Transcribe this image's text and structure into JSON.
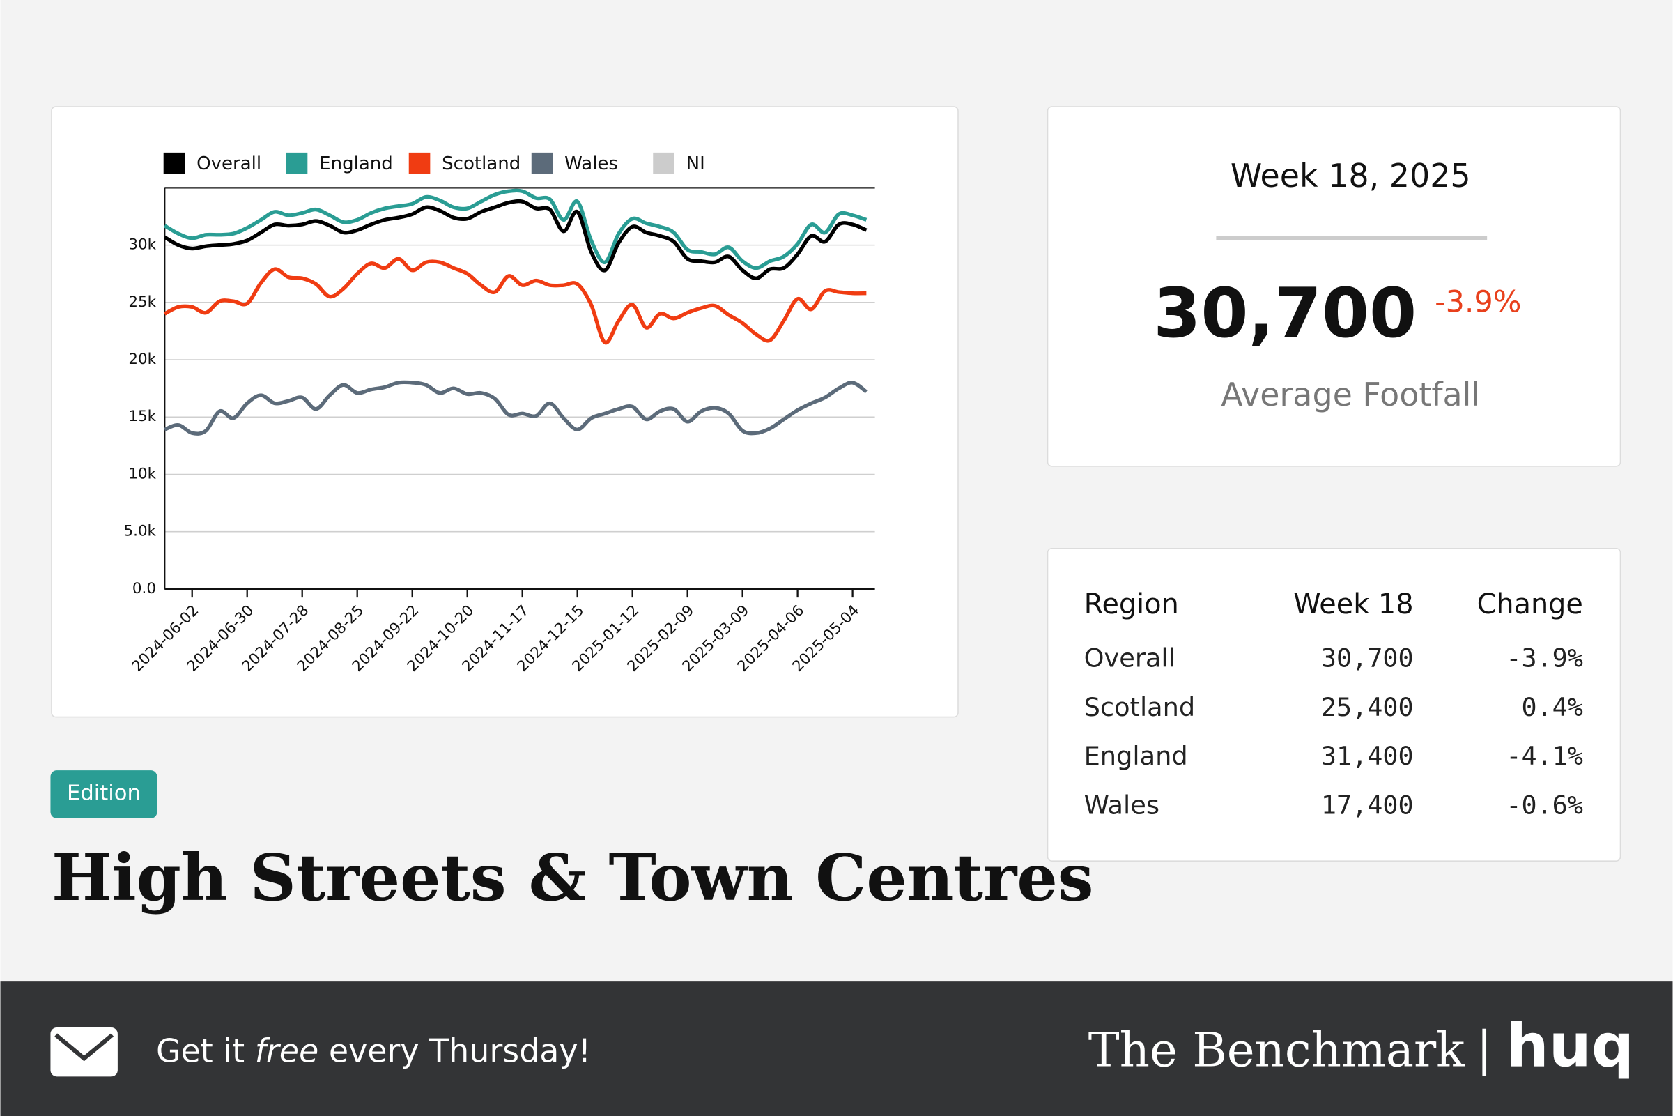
{
  "chart_data": {
    "type": "line",
    "x": [
      "2024-05-19",
      "2024-05-26",
      "2024-06-02",
      "2024-06-09",
      "2024-06-16",
      "2024-06-23",
      "2024-06-30",
      "2024-07-07",
      "2024-07-14",
      "2024-07-21",
      "2024-07-28",
      "2024-08-04",
      "2024-08-11",
      "2024-08-18",
      "2024-08-25",
      "2024-09-01",
      "2024-09-08",
      "2024-09-15",
      "2024-09-22",
      "2024-09-29",
      "2024-10-06",
      "2024-10-13",
      "2024-10-20",
      "2024-10-27",
      "2024-11-03",
      "2024-11-10",
      "2024-11-17",
      "2024-11-24",
      "2024-12-01",
      "2024-12-08",
      "2024-12-15",
      "2024-12-22",
      "2024-12-29",
      "2025-01-05",
      "2025-01-12",
      "2025-01-19",
      "2025-01-26",
      "2025-02-02",
      "2025-02-09",
      "2025-02-16",
      "2025-02-23",
      "2025-03-02",
      "2025-03-09",
      "2025-03-16",
      "2025-03-23",
      "2025-03-30",
      "2025-04-06",
      "2025-04-13",
      "2025-04-20",
      "2025-04-27",
      "2025-05-04",
      "2025-05-11"
    ],
    "series": [
      {
        "name": "Overall",
        "color": "#000000",
        "values": [
          30700,
          30000,
          29700,
          29900,
          30000,
          30100,
          30400,
          31100,
          31800,
          31700,
          31800,
          32100,
          31700,
          31100,
          31300,
          31800,
          32200,
          32400,
          32700,
          33300,
          33000,
          32400,
          32300,
          32900,
          33300,
          33700,
          33800,
          33200,
          33100,
          31200,
          32900,
          29400,
          27800,
          30200,
          31600,
          31100,
          30800,
          30300,
          28800,
          28600,
          28500,
          29000,
          27800,
          27100,
          27900,
          28000,
          29200,
          30800,
          30300,
          31800,
          31800,
          31300
        ]
      },
      {
        "name": "England",
        "color": "#2a9d94",
        "values": [
          31700,
          31000,
          30600,
          30900,
          30900,
          31000,
          31500,
          32200,
          32900,
          32600,
          32800,
          33100,
          32600,
          32000,
          32200,
          32800,
          33200,
          33400,
          33600,
          34200,
          33900,
          33300,
          33200,
          33800,
          34400,
          34700,
          34700,
          34100,
          34000,
          32200,
          33800,
          30400,
          28500,
          31000,
          32300,
          31900,
          31600,
          31100,
          29600,
          29400,
          29200,
          29800,
          28600,
          28000,
          28600,
          29000,
          30100,
          31800,
          31100,
          32700,
          32600,
          32200
        ]
      },
      {
        "name": "Scotland",
        "color": "#f03c12",
        "values": [
          24000,
          24600,
          24600,
          24100,
          25100,
          25100,
          24900,
          26700,
          27900,
          27200,
          27100,
          26600,
          25500,
          26200,
          27500,
          28400,
          28000,
          28800,
          27800,
          28500,
          28500,
          28000,
          27500,
          26500,
          25900,
          27300,
          26500,
          26900,
          26500,
          26500,
          26600,
          24800,
          21500,
          23400,
          24800,
          22800,
          24000,
          23600,
          24100,
          24500,
          24700,
          23900,
          23200,
          22200,
          21700,
          23400,
          25300,
          24400,
          26000,
          25900,
          25800,
          25800
        ]
      },
      {
        "name": "Wales",
        "color": "#5c6b7a",
        "values": [
          13900,
          14300,
          13600,
          13800,
          15500,
          14900,
          16200,
          16900,
          16200,
          16400,
          16700,
          15700,
          16900,
          17800,
          17100,
          17400,
          17600,
          18000,
          18000,
          17800,
          17100,
          17500,
          17000,
          17100,
          16600,
          15200,
          15300,
          15100,
          16200,
          14900,
          13900,
          14900,
          15300,
          15700,
          15900,
          14800,
          15500,
          15700,
          14600,
          15500,
          15800,
          15300,
          13800,
          13600,
          14000,
          14800,
          15600,
          16200,
          16700,
          17500,
          18000,
          17200
        ]
      },
      {
        "name": "NI",
        "color": "#cccccc",
        "values": [
          null,
          null,
          null,
          null,
          null,
          null,
          null,
          null,
          null,
          null,
          null,
          null,
          null,
          null,
          null,
          null,
          null,
          null,
          null,
          null,
          null,
          null,
          null,
          null,
          null,
          null,
          null,
          null,
          null,
          null,
          null,
          null,
          null,
          null,
          null,
          null,
          null,
          null,
          null,
          null,
          null,
          null,
          null,
          null,
          null,
          null,
          null,
          null,
          null,
          null,
          null,
          null
        ]
      }
    ],
    "xlim": [
      "2024-05-19",
      "2025-05-11"
    ],
    "xticks": [
      "2024-06-02",
      "2024-06-30",
      "2024-07-28",
      "2024-08-25",
      "2024-09-22",
      "2024-10-20",
      "2024-11-17",
      "2024-12-15",
      "2025-01-12",
      "2025-02-09",
      "2025-03-09",
      "2025-04-06",
      "2025-05-04"
    ],
    "ylim": [
      0,
      35000
    ],
    "yticks": [
      {
        "value": 0,
        "label": "0.0"
      },
      {
        "value": 5000,
        "label": "5.0k"
      },
      {
        "value": 10000,
        "label": "10k"
      },
      {
        "value": 15000,
        "label": "15k"
      },
      {
        "value": 20000,
        "label": "20k"
      },
      {
        "value": 25000,
        "label": "25k"
      },
      {
        "value": 30000,
        "label": "30k"
      }
    ],
    "grid": true,
    "legend": "top"
  },
  "summary": {
    "week": "Week 18, 2025",
    "value": "30,700",
    "change": "-3.9%",
    "label": "Average Footfall"
  },
  "table": {
    "header": [
      "Region",
      "Week 18",
      "Change"
    ],
    "rows": [
      [
        "Overall",
        "30,700",
        "-3.9%"
      ],
      [
        "Scotland",
        "25,400",
        "0.4%"
      ],
      [
        "England",
        "31,400",
        "-4.1%"
      ],
      [
        "Wales",
        "17,400",
        "-0.6%"
      ]
    ]
  },
  "badge": "Edition",
  "title": "High Streets & Town Centres",
  "footer": {
    "cta": [
      "Get it ",
      "free",
      " every Thursday!"
    ],
    "brand": "The Benchmark",
    "separator": "|",
    "logo": "huq"
  }
}
